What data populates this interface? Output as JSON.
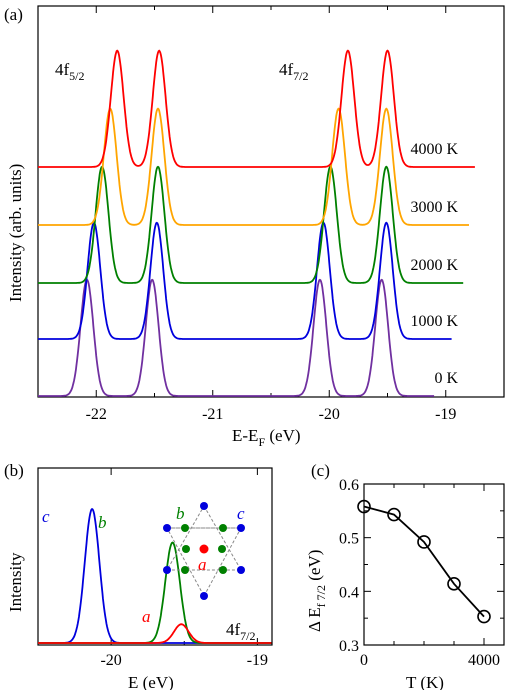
{
  "chart_data": [
    {
      "panel": "(a)",
      "type": "line",
      "xlabel": "E-E",
      "xlabel_sub": "F",
      "xlabel_unit": " (eV)",
      "ylabel": "Intensity (arb. units)",
      "xlim": [
        -22.5,
        -18.5
      ],
      "x_ticks": [
        -22,
        -21,
        -20,
        -19
      ],
      "annotations": [
        {
          "text": "4f",
          "sub": "5/2"
        },
        {
          "text": "4f",
          "sub": "7/2"
        }
      ],
      "series": [
        {
          "name": "0 K",
          "color": "#7030a0",
          "peaks": [
            -22.08,
            -21.52,
            -20.08,
            -19.55
          ],
          "amplitude": [
            0.93,
            0.93,
            0.93,
            0.93
          ],
          "width": 0.055,
          "x_end": -19.1
        },
        {
          "name": "1000 K",
          "color": "#0000dd",
          "peaks": [
            -22.02,
            -21.48,
            -20.05,
            -19.51
          ],
          "amplitude": [
            0.93,
            0.93,
            0.93,
            0.93
          ],
          "width": 0.055,
          "x_end": -18.95
        },
        {
          "name": "2000 K",
          "color": "#008000",
          "peaks": [
            -21.95,
            -21.47,
            -19.99,
            -19.51
          ],
          "amplitude": [
            0.93,
            0.93,
            0.93,
            0.93
          ],
          "width": 0.055,
          "x_end": -18.85
        },
        {
          "name": "3000 K",
          "color": "#ffa500",
          "peaks": [
            -21.88,
            -21.47,
            -19.92,
            -19.51
          ],
          "amplitude": [
            0.93,
            0.93,
            0.93,
            0.93
          ],
          "width": 0.055,
          "x_end": -18.8
        },
        {
          "name": "4000 K",
          "color": "#ff0000",
          "peaks": [
            -21.82,
            -21.46,
            -19.84,
            -19.5
          ],
          "amplitude": [
            0.93,
            0.93,
            0.93,
            0.93
          ],
          "width": 0.055,
          "x_end": -18.75
        }
      ]
    },
    {
      "panel": "(b)",
      "type": "line",
      "xlabel": "E (eV)",
      "ylabel": "Intensity",
      "xlim": [
        -20.5,
        -18.9
      ],
      "x_ticks": [
        -20,
        -19
      ],
      "annotation": {
        "text": "4f",
        "sub": "7/2"
      },
      "series": [
        {
          "name": "c",
          "color": "#0000dd",
          "peak": -20.13,
          "amplitude": 1.0,
          "width": 0.05
        },
        {
          "name": "b",
          "color": "#008000",
          "peak": -19.58,
          "amplitude": 0.75,
          "width": 0.05
        },
        {
          "name": "a",
          "color": "#ff0000",
          "peak": -19.52,
          "amplitude": 0.14,
          "width": 0.05
        }
      ],
      "inset_labels": [
        {
          "text": "b",
          "color": "#008000"
        },
        {
          "text": "c",
          "color": "#0000dd"
        },
        {
          "text": "a",
          "color": "#ff0000"
        }
      ]
    },
    {
      "panel": "(c)",
      "type": "line",
      "xlabel": "T (K)",
      "ylabel": "Δ E",
      "ylabel_sub": "f 7/2",
      "ylabel_unit": " (eV)",
      "xlim": [
        0,
        4000
      ],
      "ylim": [
        0.3,
        0.6
      ],
      "x_ticks": [
        0,
        4000
      ],
      "y_ticks": [
        0.3,
        0.4,
        0.5,
        0.6
      ],
      "y_tick_labels": [
        "0.3",
        "0.4",
        "0.5",
        "0.6"
      ],
      "x": [
        0,
        1000,
        2000,
        3000,
        4000
      ],
      "y": [
        0.558,
        0.543,
        0.492,
        0.414,
        0.353
      ]
    }
  ]
}
